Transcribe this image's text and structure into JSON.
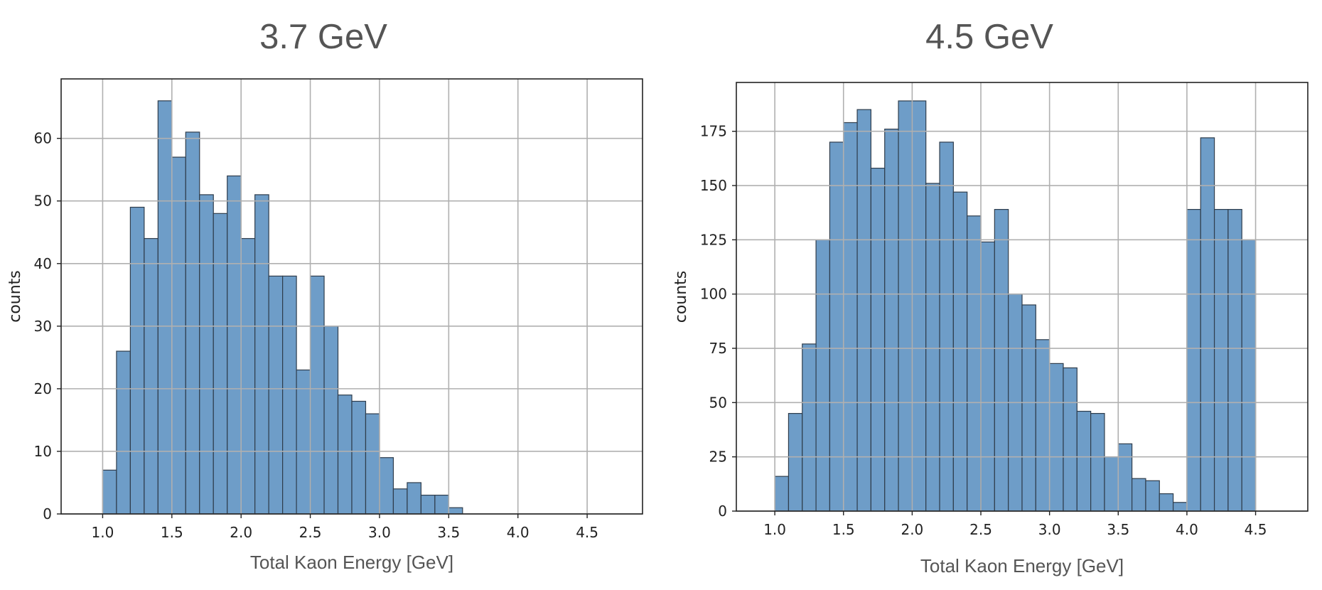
{
  "chart_data": [
    {
      "type": "bar",
      "title": "3.7 GeV",
      "xlabel": "Total Kaon Energy [GeV]",
      "ylabel": "counts",
      "xlim": [
        0.7,
        4.9
      ],
      "ylim": [
        0,
        69.5
      ],
      "xticks": [
        "1.0",
        "1.5",
        "2.0",
        "2.5",
        "3.0",
        "3.5",
        "4.0",
        "4.5"
      ],
      "yticks": [
        "0",
        "10",
        "20",
        "30",
        "40",
        "50",
        "60"
      ],
      "bin_start": 1.0,
      "bin_width": 0.1,
      "values": [
        7,
        26,
        49,
        44,
        66,
        57,
        61,
        51,
        48,
        54,
        44,
        51,
        38,
        38,
        23,
        38,
        30,
        19,
        18,
        16,
        9,
        4,
        5,
        3,
        3,
        1
      ],
      "grid": true,
      "bar_color": "#6e9dc8"
    },
    {
      "type": "bar",
      "title": "4.5 GeV",
      "xlabel": "Total Kaon Energy [GeV]",
      "ylabel": "counts",
      "xlim": [
        0.72,
        4.88
      ],
      "ylim": [
        0,
        197.5
      ],
      "xticks": [
        "1.0",
        "1.5",
        "2.0",
        "2.5",
        "3.0",
        "3.5",
        "4.0",
        "4.5"
      ],
      "yticks": [
        "0",
        "25",
        "50",
        "75",
        "100",
        "125",
        "150",
        "175"
      ],
      "bin_start": 1.0,
      "bin_width": 0.1,
      "values": [
        16,
        45,
        77,
        125,
        170,
        179,
        185,
        158,
        176,
        189,
        189,
        151,
        170,
        147,
        136,
        124,
        139,
        100,
        95,
        79,
        68,
        66,
        46,
        45,
        25,
        31,
        15,
        14,
        8,
        4,
        139,
        172,
        139,
        139,
        125
      ],
      "grid": true,
      "bar_color": "#6e9dc8"
    }
  ]
}
